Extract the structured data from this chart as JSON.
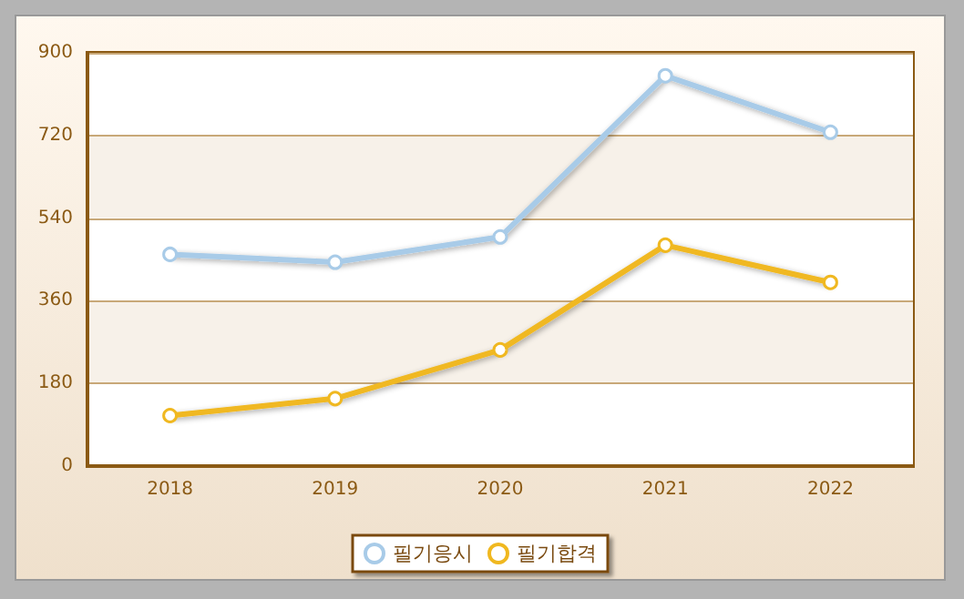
{
  "chart_data": {
    "type": "line",
    "categories": [
      "2018",
      "2019",
      "2020",
      "2021",
      "2022"
    ],
    "series": [
      {
        "name": "필기응시",
        "color": "#a8cbe8",
        "values": [
          461,
          444,
          499,
          850,
          727
        ]
      },
      {
        "name": "필기합격",
        "color": "#f0b820",
        "values": [
          110,
          147,
          253,
          481,
          400
        ]
      }
    ],
    "ylim": [
      0,
      900
    ],
    "yticks": [
      0,
      180,
      360,
      540,
      720,
      900
    ],
    "grid": "y",
    "legend": "bottom",
    "marker": "circle"
  }
}
